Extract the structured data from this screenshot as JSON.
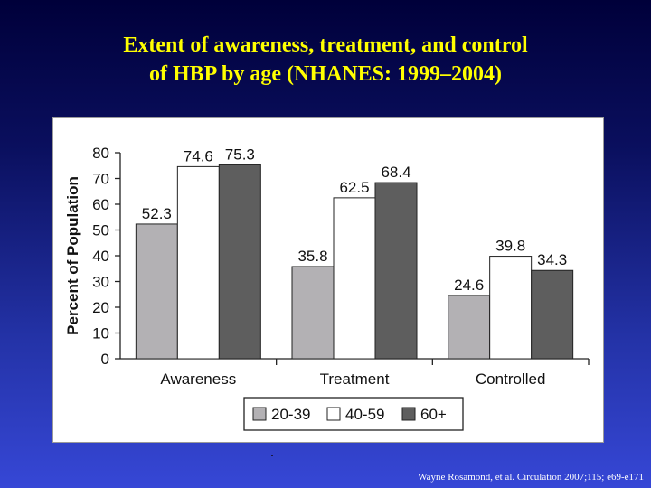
{
  "title": {
    "line1": "Extent of awareness, treatment, and control",
    "line2": "of HBP by age (NHANES: 1999–2004)"
  },
  "citation": "Wayne Rosamond, et al. Circulation  2007;115; e69-e171",
  "chart_data": {
    "type": "bar",
    "categories": [
      "Awareness",
      "Treatment",
      "Controlled"
    ],
    "series": [
      {
        "name": "20-39",
        "color": "#b3b1b4",
        "values": [
          52.3,
          35.8,
          24.6
        ]
      },
      {
        "name": "40-59",
        "color": "#ffffff",
        "values": [
          74.6,
          62.5,
          39.8
        ]
      },
      {
        "name": "60+",
        "color": "#5e5e5e",
        "values": [
          75.3,
          68.4,
          34.3
        ]
      }
    ],
    "data_labels": [
      [
        "52.3",
        "35.8",
        "24.6"
      ],
      [
        "74.6",
        "62.5",
        "39.8"
      ],
      [
        "75.3",
        "68.4",
        "34.3"
      ]
    ],
    "ylabel": "Percent of Population",
    "xlabel": "",
    "ylim": [
      0,
      80
    ],
    "yticks": [
      0,
      10,
      20,
      30,
      40,
      50,
      60,
      70,
      80
    ],
    "ytick_labels": [
      "0",
      "10",
      "20",
      "30",
      "40",
      "50",
      "60",
      "70",
      "80"
    ],
    "grid": false,
    "legend_position": "bottom"
  }
}
